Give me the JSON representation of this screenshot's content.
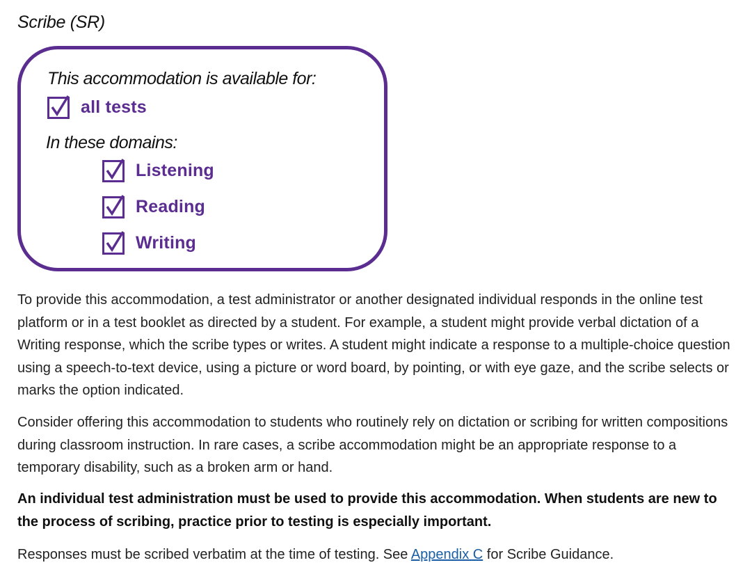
{
  "heading": "Scribe (SR)",
  "availability_box": {
    "available_label": "This accommodation is available for:",
    "all_tests": {
      "label": "all tests",
      "checked": true
    },
    "domains_label": "In these domains:",
    "domains": [
      {
        "label": "Listening",
        "checked": true
      },
      {
        "label": "Reading",
        "checked": true
      },
      {
        "label": "Writing",
        "checked": true
      }
    ],
    "accent_color": "#5b2d90"
  },
  "paragraphs": {
    "p1": "To provide this accommodation, a test administrator or another designated individual responds in the online test platform or in a test booklet as directed by a student. For example, a student might provide verbal dictation of a Writing response, which the scribe types or writes. A student might indicate a response to a multiple-choice question using a speech-to-text device, using a picture or word board, by pointing, or with eye gaze, and the scribe selects or marks the option indicated.",
    "p2": "Consider offering this accommodation to students who routinely rely on dictation or scribing for written compositions during classroom instruction. In rare cases, a scribe accommodation might be an appropriate response to a temporary disability, such as a broken arm or hand.",
    "p3": "An individual test administration must be used to provide this accommodation. When students are new to the process of scribing, practice prior to testing is especially important.",
    "p4_before": "Responses must be scribed verbatim at the time of testing. See ",
    "p4_link": "Appendix C",
    "p4_after": " for Scribe Guidance."
  },
  "link_color": "#1a5fa6"
}
